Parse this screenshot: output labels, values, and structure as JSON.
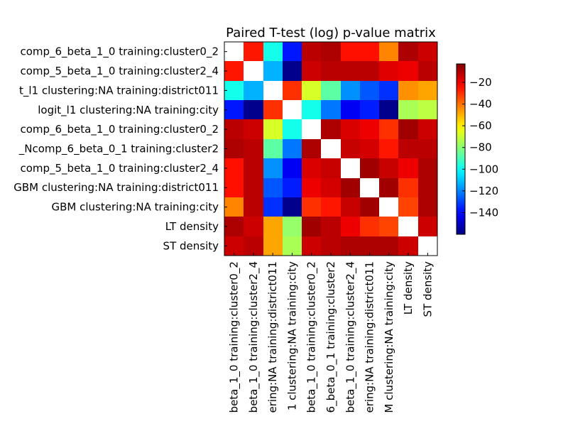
{
  "chart_data": {
    "type": "heatmap",
    "title": "Paired T-test (log) p-value matrix",
    "row_labels": [
      "comp_6_beta_1_0 training:cluster0_2",
      "comp_5_beta_1_0 training:cluster2_4",
      "t_l1 clustering:NA training:district011",
      "logit_l1 clustering:NA training:city",
      "comp_6_beta_1_0 training:cluster0_2",
      "_Ncomp_6_beta_0_1 training:cluster2",
      "comp_5_beta_1_0 training:cluster2_4",
      "GBM clustering:NA training:district011",
      "GBM clustering:NA training:city",
      "LT density",
      "ST density"
    ],
    "col_labels": [
      "beta_1_0 training:cluster0_2",
      "beta_1_0 training:cluster2_4",
      "ering:NA training:district011",
      "1 clustering:NA training:city",
      "beta_1_0 training:cluster0_2",
      "6_beta_0_1 training:cluster2",
      "beta_1_0 training:cluster2_4",
      "ering:NA training:district011",
      "M clustering:NA training:city",
      "LT density",
      "ST density"
    ],
    "values": [
      [
        null,
        -26,
        -98,
        -137,
        -12,
        -10,
        -25,
        -25,
        -43,
        -10,
        -15
      ],
      [
        -26,
        null,
        -113,
        -158,
        -15,
        -12,
        -12,
        -12,
        -18,
        -20,
        -12
      ],
      [
        -98,
        -113,
        null,
        -30,
        -68,
        -87,
        -118,
        -127,
        -133,
        -45,
        -48
      ],
      [
        -137,
        -158,
        -30,
        null,
        -98,
        -122,
        -142,
        -136,
        -158,
        -75,
        -72
      ],
      [
        -12,
        -15,
        -68,
        -98,
        null,
        -10,
        -17,
        -20,
        -30,
        -8,
        -15
      ],
      [
        -10,
        -12,
        -87,
        -122,
        -10,
        null,
        -14,
        -16,
        -26,
        -12,
        -12
      ],
      [
        -25,
        -12,
        -118,
        -142,
        -17,
        -14,
        null,
        -8,
        -14,
        -20,
        -10
      ],
      [
        -25,
        -12,
        -127,
        -136,
        -20,
        -16,
        -8,
        null,
        -8,
        -30,
        -10
      ],
      [
        -43,
        -12,
        -133,
        -158,
        -30,
        -26,
        -14,
        -8,
        null,
        -33,
        -10
      ],
      [
        -10,
        -15,
        -48,
        -78,
        -8,
        -12,
        -20,
        -30,
        -33,
        null,
        -15
      ],
      [
        -15,
        -12,
        -48,
        -75,
        -15,
        -12,
        -10,
        -10,
        -10,
        -15,
        null
      ]
    ],
    "colormap": "jet",
    "vmin": -160,
    "vmax": -3,
    "colorbar_ticks": [
      -20,
      -40,
      -60,
      -80,
      -100,
      -120,
      -140
    ],
    "grid": false,
    "legend": "colorbar-right"
  }
}
